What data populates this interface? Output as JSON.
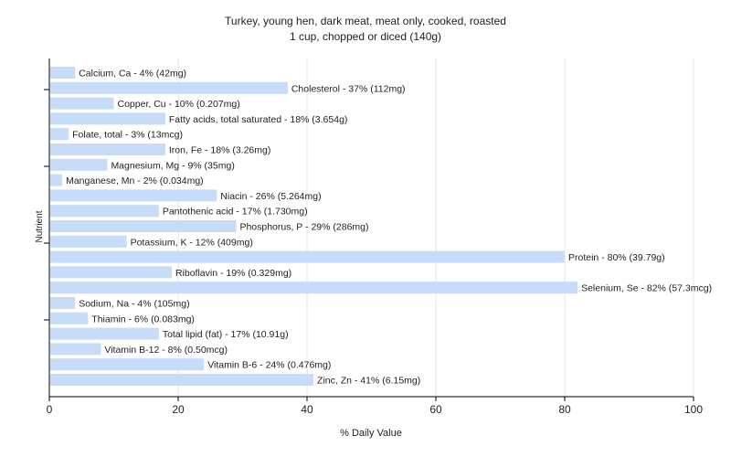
{
  "chart_data": {
    "type": "bar",
    "orientation": "horizontal",
    "title": "Turkey, young hen, dark meat, meat only, cooked, roasted",
    "subtitle": "1 cup, chopped or diced (140g)",
    "xlabel": "% Daily Value",
    "ylabel": "Nutrient",
    "xlim": [
      0,
      100
    ],
    "xticks": [
      0,
      20,
      40,
      60,
      80,
      100
    ],
    "grid": true,
    "bar_color": "#c6dcf8",
    "categories": [
      "Calcium, Ca",
      "Cholesterol",
      "Copper, Cu",
      "Fatty acids, total saturated",
      "Folate, total",
      "Iron, Fe",
      "Magnesium, Mg",
      "Manganese, Mn",
      "Niacin",
      "Pantothenic acid",
      "Phosphorus, P",
      "Potassium, K",
      "Protein",
      "Riboflavin",
      "Selenium, Se",
      "Sodium, Na",
      "Thiamin",
      "Total lipid (fat)",
      "Vitamin B-12",
      "Vitamin B-6",
      "Zinc, Zn"
    ],
    "values": [
      4,
      37,
      10,
      18,
      3,
      18,
      9,
      2,
      26,
      17,
      29,
      12,
      80,
      19,
      82,
      4,
      6,
      17,
      8,
      24,
      41
    ],
    "labels": [
      "Calcium, Ca - 4% (42mg)",
      "Cholesterol - 37% (112mg)",
      "Copper, Cu - 10% (0.207mg)",
      "Fatty acids, total saturated - 18% (3.654g)",
      "Folate, total - 3% (13mcg)",
      "Iron, Fe - 18% (3.26mg)",
      "Magnesium, Mg - 9% (35mg)",
      "Manganese, Mn - 2% (0.034mg)",
      "Niacin - 26% (5.264mg)",
      "Pantothenic acid - 17% (1.730mg)",
      "Phosphorus, P - 29% (286mg)",
      "Potassium, K - 12% (409mg)",
      "Protein - 80% (39.79g)",
      "Riboflavin - 19% (0.329mg)",
      "Selenium, Se - 82% (57.3mcg)",
      "Sodium, Na - 4% (105mg)",
      "Thiamin - 6% (0.083mg)",
      "Total lipid (fat) - 17% (10.91g)",
      "Vitamin B-12 - 8% (0.50mcg)",
      "Vitamin B-6 - 24% (0.476mg)",
      "Zinc, Zn - 41% (6.15mg)"
    ]
  }
}
